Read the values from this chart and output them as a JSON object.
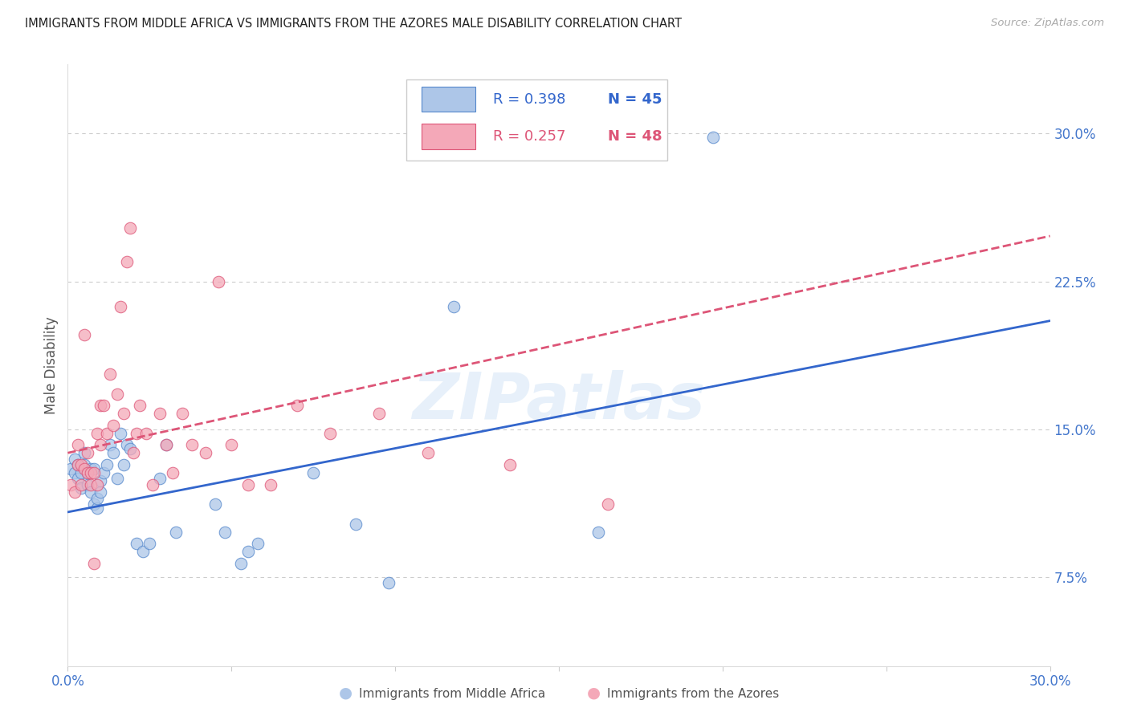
{
  "title": "IMMIGRANTS FROM MIDDLE AFRICA VS IMMIGRANTS FROM THE AZORES MALE DISABILITY CORRELATION CHART",
  "source": "Source: ZipAtlas.com",
  "ylabel": "Male Disability",
  "xlim": [
    0.0,
    0.3
  ],
  "ylim": [
    0.03,
    0.335
  ],
  "yticks": [
    0.075,
    0.15,
    0.225,
    0.3
  ],
  "ytick_labels": [
    "7.5%",
    "15.0%",
    "22.5%",
    "30.0%"
  ],
  "xticks": [
    0.0,
    0.05,
    0.1,
    0.15,
    0.2,
    0.25,
    0.3
  ],
  "xtick_labels": [
    "0.0%",
    "",
    "",
    "",
    "",
    "",
    "30.0%"
  ],
  "grid_color": "#cccccc",
  "background_color": "#ffffff",
  "watermark": "ZIPatlas",
  "series": [
    {
      "name": "Immigrants from Middle Africa",
      "R": 0.398,
      "N": 45,
      "dot_facecolor": "#adc6e8",
      "dot_edgecolor": "#5588cc",
      "trendline_color": "#3366cc",
      "trendline_style": "solid",
      "trend_x0": 0.0,
      "trend_y0": 0.108,
      "trend_x1": 0.3,
      "trend_y1": 0.205,
      "x": [
        0.001,
        0.002,
        0.002,
        0.003,
        0.003,
        0.004,
        0.004,
        0.005,
        0.005,
        0.006,
        0.006,
        0.007,
        0.007,
        0.008,
        0.008,
        0.009,
        0.009,
        0.01,
        0.01,
        0.011,
        0.012,
        0.013,
        0.014,
        0.015,
        0.016,
        0.017,
        0.018,
        0.019,
        0.021,
        0.023,
        0.025,
        0.028,
        0.03,
        0.033,
        0.045,
        0.048,
        0.053,
        0.055,
        0.058,
        0.075,
        0.088,
        0.098,
        0.118,
        0.162,
        0.197
      ],
      "y": [
        0.13,
        0.128,
        0.135,
        0.125,
        0.132,
        0.12,
        0.128,
        0.132,
        0.138,
        0.122,
        0.128,
        0.118,
        0.13,
        0.112,
        0.13,
        0.11,
        0.115,
        0.118,
        0.124,
        0.128,
        0.132,
        0.142,
        0.138,
        0.125,
        0.148,
        0.132,
        0.142,
        0.14,
        0.092,
        0.088,
        0.092,
        0.125,
        0.142,
        0.098,
        0.112,
        0.098,
        0.082,
        0.088,
        0.092,
        0.128,
        0.102,
        0.072,
        0.212,
        0.098,
        0.298
      ]
    },
    {
      "name": "Immigrants from the Azores",
      "R": 0.257,
      "N": 48,
      "dot_facecolor": "#f4a8b8",
      "dot_edgecolor": "#dd5577",
      "trendline_color": "#dd5577",
      "trendline_style": "dashed",
      "trend_x0": 0.0,
      "trend_y0": 0.138,
      "trend_x1": 0.3,
      "trend_y1": 0.248,
      "x": [
        0.001,
        0.002,
        0.003,
        0.003,
        0.004,
        0.004,
        0.005,
        0.005,
        0.006,
        0.006,
        0.007,
        0.007,
        0.008,
        0.008,
        0.009,
        0.009,
        0.01,
        0.01,
        0.011,
        0.012,
        0.013,
        0.014,
        0.015,
        0.016,
        0.017,
        0.018,
        0.019,
        0.02,
        0.021,
        0.022,
        0.024,
        0.026,
        0.028,
        0.03,
        0.032,
        0.035,
        0.038,
        0.042,
        0.046,
        0.05,
        0.055,
        0.062,
        0.07,
        0.08,
        0.095,
        0.11,
        0.135,
        0.165
      ],
      "y": [
        0.122,
        0.118,
        0.142,
        0.132,
        0.132,
        0.122,
        0.13,
        0.198,
        0.128,
        0.138,
        0.128,
        0.122,
        0.082,
        0.128,
        0.122,
        0.148,
        0.142,
        0.162,
        0.162,
        0.148,
        0.178,
        0.152,
        0.168,
        0.212,
        0.158,
        0.235,
        0.252,
        0.138,
        0.148,
        0.162,
        0.148,
        0.122,
        0.158,
        0.142,
        0.128,
        0.158,
        0.142,
        0.138,
        0.225,
        0.142,
        0.122,
        0.122,
        0.162,
        0.148,
        0.158,
        0.138,
        0.132,
        0.112
      ]
    }
  ]
}
